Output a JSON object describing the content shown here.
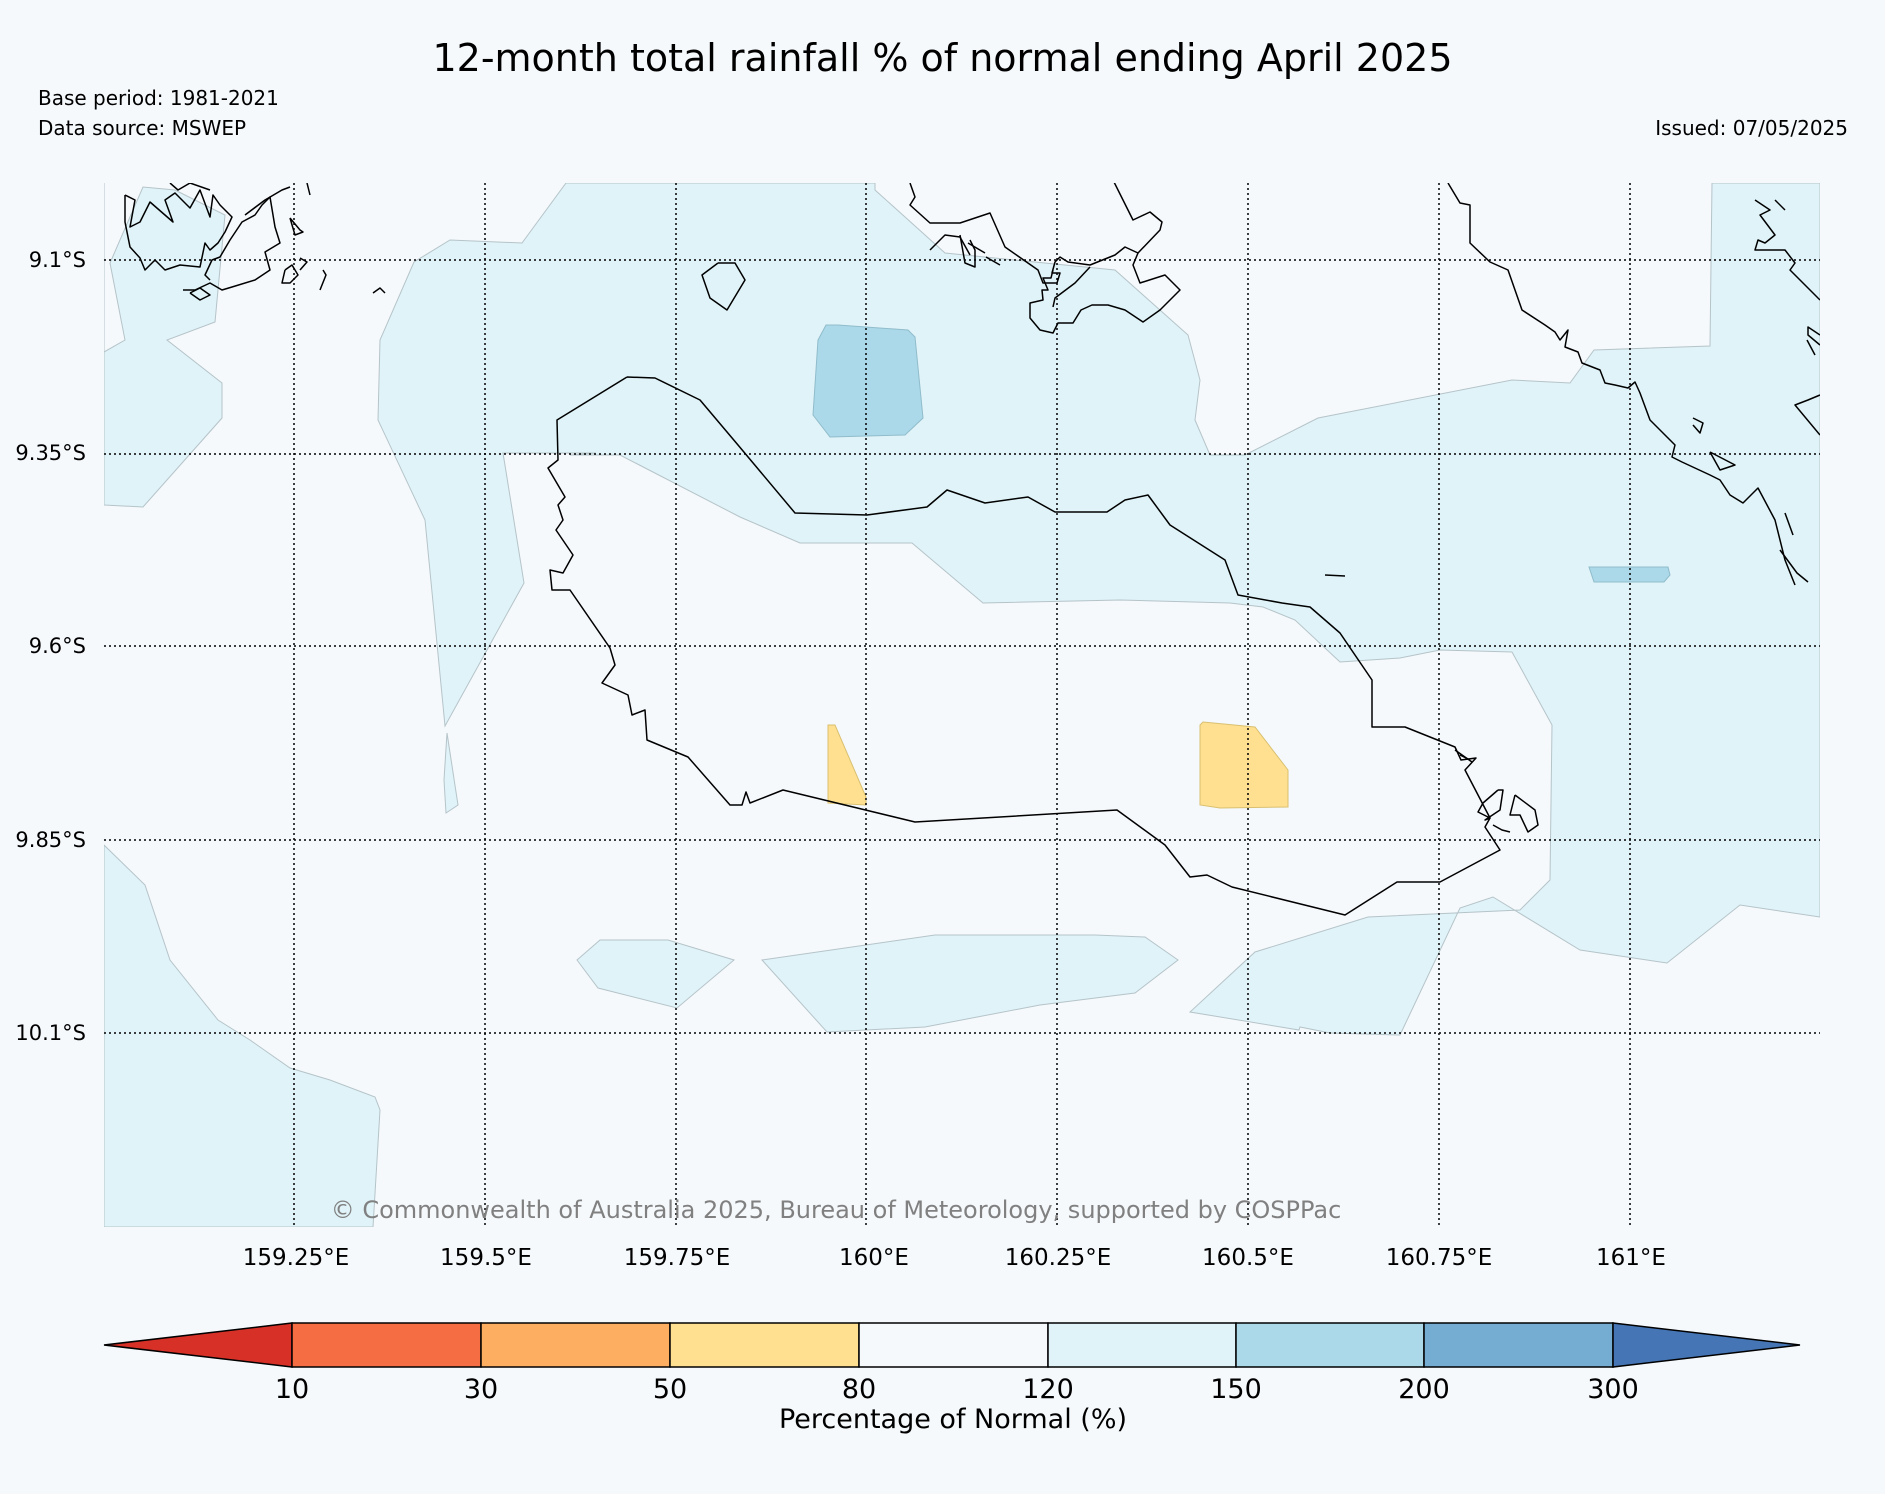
{
  "header": {
    "title": "12-month total rainfall % of normal ending April 2025",
    "base_period": "Base period: 1981-2021",
    "data_source": "Data source: MSWEP",
    "issued": "Issued: 07/05/2025"
  },
  "map": {
    "lat_labels": [
      "9.1°S",
      "9.35°S",
      "9.6°S",
      "9.85°S",
      "10.1°S"
    ],
    "lon_labels": [
      "159.25°E",
      "159.5°E",
      "159.75°E",
      "160°E",
      "160.25°E",
      "160.5°E",
      "160.75°E",
      "161°E"
    ],
    "copyright": "© Commonwealth of Australia 2025, Bureau of Meteorology, supported by COSPPac",
    "background_color": "#f5f9fc",
    "coastline_color": "#000000"
  },
  "colorbar": {
    "title": "Percentage of Normal (%)",
    "tick_labels": [
      "10",
      "30",
      "50",
      "80",
      "120",
      "150",
      "200",
      "300"
    ],
    "colors": [
      "#d73027",
      "#f46d43",
      "#fdae61",
      "#fee090",
      "#f5f9fc",
      "#e0f3f8",
      "#abd9e9",
      "#74add1",
      "#4575b4"
    ]
  }
}
